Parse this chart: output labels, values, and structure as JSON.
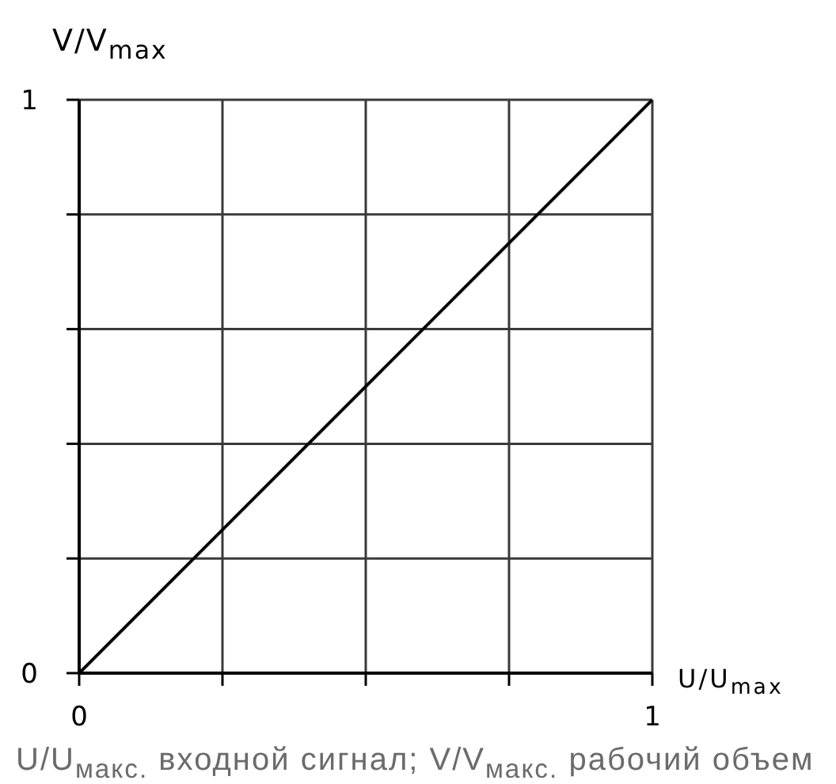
{
  "chart_data": {
    "type": "line",
    "x": [
      0,
      1
    ],
    "series": [
      {
        "color": "#000000",
        "values": [
          0,
          1
        ]
      }
    ],
    "xlabel": "U/U$_{max}$",
    "ylabel": "V/V$_{max}$",
    "annotations": [
      "U/U$_{макс.}$ входной сигнал; V/V$_{макс.}$ рабочий объем"
    ],
    "xlim": [
      0,
      1
    ],
    "ylim": [
      0,
      1
    ],
    "xticks": [
      0,
      {
        "value": 0.25,
        "label": null
      },
      {
        "value": 0.5,
        "label": null
      },
      {
        "value": 0.75,
        "label": null
      },
      1
    ],
    "yticks": [
      0,
      {
        "value": 0.2,
        "label": null
      },
      {
        "value": 0.4,
        "label": null
      },
      {
        "value": 0.6,
        "label": null
      },
      {
        "value": 0.8,
        "label": null
      },
      1
    ],
    "grid": true,
    "marker": "none",
    "line_style": "solid"
  }
}
